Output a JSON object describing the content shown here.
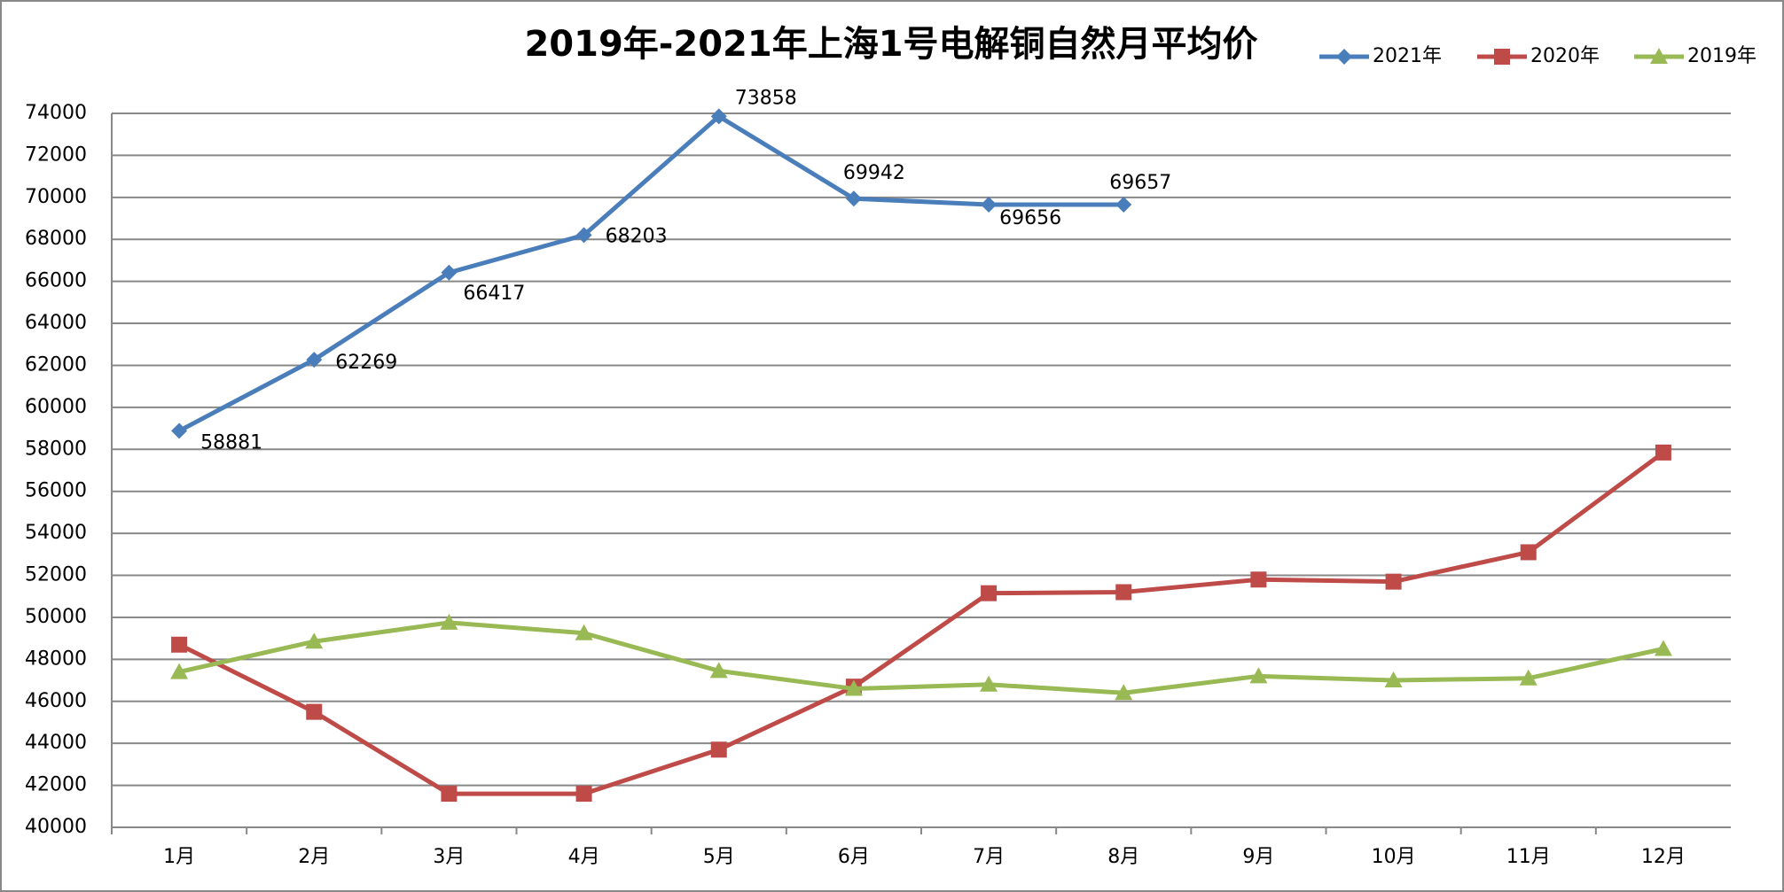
{
  "chart_data": {
    "type": "line",
    "title": "2019年-2021年上海1号电解铜自然月平均价",
    "categories": [
      "1月",
      "2月",
      "3月",
      "4月",
      "5月",
      "6月",
      "7月",
      "8月",
      "9月",
      "10月",
      "11月",
      "12月"
    ],
    "series": [
      {
        "name": "2021年",
        "color": "#4a7ebb",
        "marker": "diamond",
        "values": [
          58881,
          62269,
          66417,
          68203,
          73858,
          69942,
          69656,
          69657,
          null,
          null,
          null,
          null
        ]
      },
      {
        "name": "2020年",
        "color": "#be4b48",
        "marker": "square",
        "values": [
          48700,
          45500,
          41600,
          41600,
          43700,
          46700,
          51150,
          51200,
          51800,
          51700,
          53100,
          57850
        ]
      },
      {
        "name": "2019年",
        "color": "#98b954",
        "marker": "triangle",
        "values": [
          47400,
          48850,
          49750,
          49250,
          47450,
          46600,
          46800,
          46400,
          47200,
          47000,
          47100,
          48500
        ]
      }
    ],
    "ylim": [
      40000,
      74000
    ],
    "yticks": [
      40000,
      42000,
      44000,
      46000,
      48000,
      50000,
      52000,
      54000,
      56000,
      58000,
      60000,
      62000,
      64000,
      66000,
      68000,
      70000,
      72000,
      74000
    ],
    "grid": true,
    "legend": "top-right",
    "data_labels_series": 0
  }
}
